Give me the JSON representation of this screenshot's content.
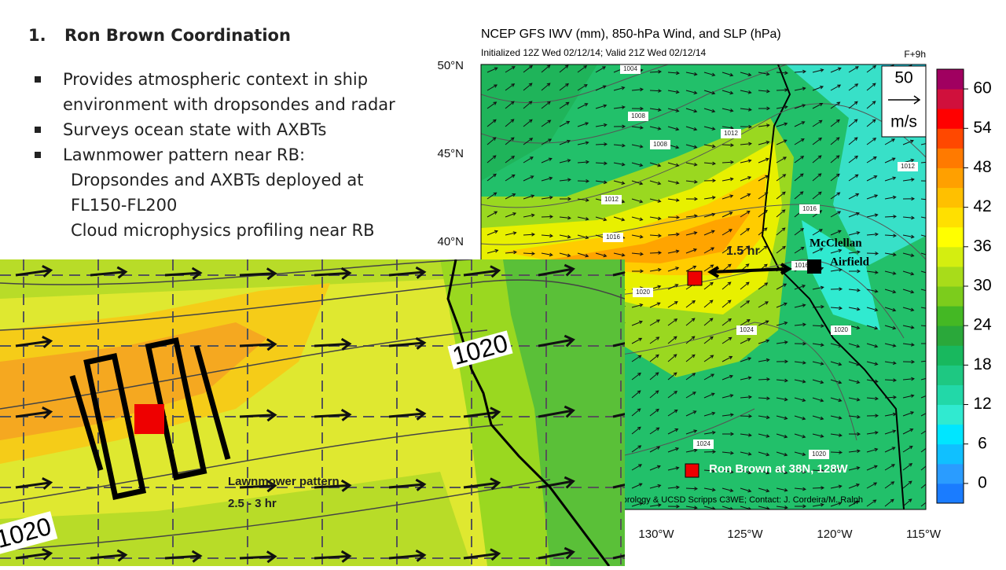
{
  "heading": {
    "number": "1.",
    "text": "Ron Brown Coordination"
  },
  "bullets": [
    {
      "lines": [
        "Provides atmospheric context in ship",
        "environment with dropsondes and radar"
      ]
    },
    {
      "lines": [
        "Surveys ocean state with AXBTs"
      ]
    },
    {
      "lines": [
        "Lawnmower pattern near RB:"
      ],
      "sub": [
        "Dropsondes and AXBTs deployed at",
        "FL150-FL200",
        "Cloud microphysics profiling near RB"
      ]
    }
  ],
  "map": {
    "title": "NCEP GFS IWV (mm), 850-hPa Wind, and SLP (hPa)",
    "subtitle": "Initialized 12Z Wed 02/12/14; Valid 21Z Wed 02/12/14",
    "forecast_hour": "F+9h",
    "lat_labels": [
      "50°N",
      "45°N",
      "40°N"
    ],
    "lon_labels": [
      "130°W",
      "125°W",
      "120°W",
      "115°W"
    ],
    "wind_key": {
      "speed": "50",
      "unit": "m/s"
    },
    "credit": "eorology & UCSD Scripps C3WE; Contact: J. Cordeira/M. Ralph",
    "contour_labels": [
      "1008",
      "1004",
      "1008",
      "1012",
      "1012",
      "1016",
      "1016",
      "1016",
      "1012",
      "1020",
      "1024",
      "1024",
      "1020",
      "1020"
    ],
    "colorbar": {
      "clim": [
        -3,
        63
      ],
      "ticks": [
        0,
        6,
        12,
        18,
        24,
        30,
        36,
        42,
        48,
        54,
        60
      ],
      "colors": [
        "#1a7cff",
        "#2a9cff",
        "#10c0ff",
        "#00e6ff",
        "#30ead0",
        "#22d8a8",
        "#1ec882",
        "#18b85e",
        "#2aa83a",
        "#44b824",
        "#7ccc1c",
        "#a8dc1a",
        "#d4ee10",
        "#ffff00",
        "#ffe000",
        "#ffc000",
        "#ffa000",
        "#ff7a00",
        "#ff4800",
        "#ff0000",
        "#d0103c",
        "#a00060"
      ]
    },
    "annotations": {
      "flight_time": "1.5 hr",
      "airfield_1": "McClellan",
      "airfield_2": "Airfield",
      "ship": "Ron Brown at 38N, 128W"
    }
  },
  "inset": {
    "contour_labels": [
      "1020",
      "1020"
    ],
    "caption": [
      "Lawnmower pattern",
      "2.5 - 3 hr"
    ]
  }
}
